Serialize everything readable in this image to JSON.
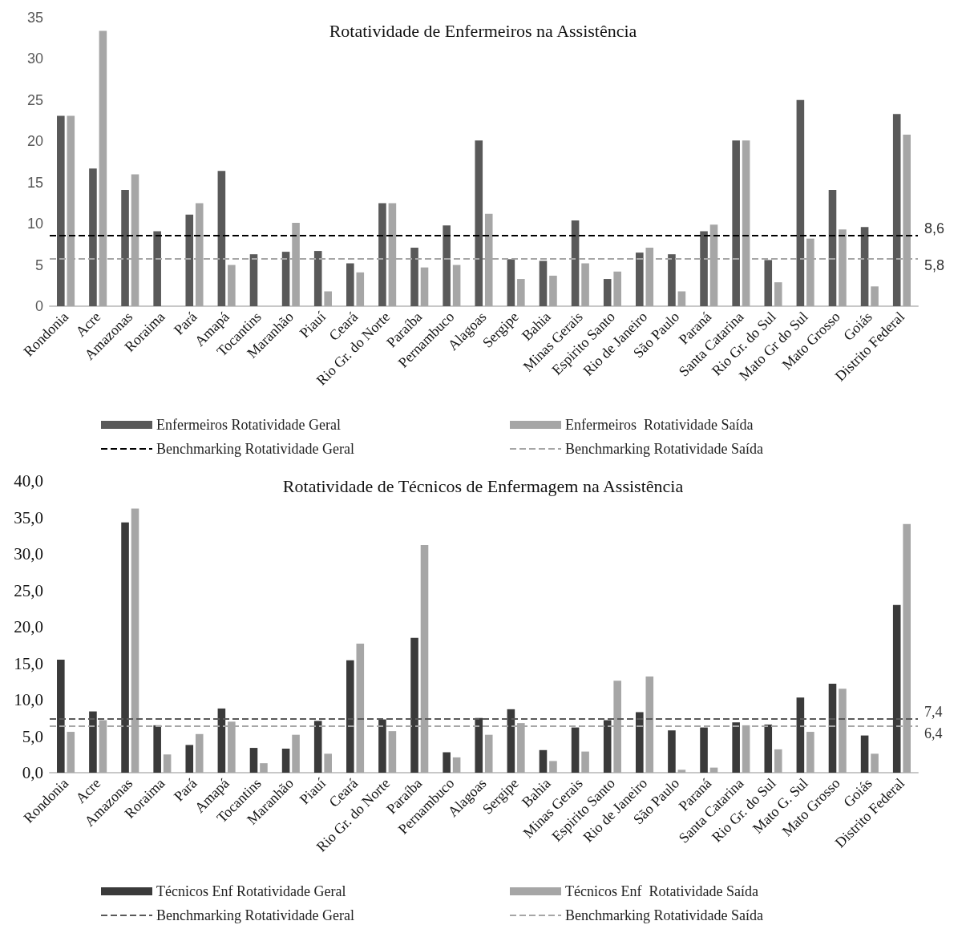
{
  "chart_data": [
    {
      "type": "bar",
      "title": "Rotatividade de Enfermeiros na Assistência",
      "categories": [
        "Rondonia",
        "Acre",
        "Amazonas",
        "Roraima",
        "Pará",
        "Amapá",
        "Tocantins",
        "Maranhão",
        "Piauí",
        "Ceará",
        "Rio Gr. do Norte",
        "Paraíba",
        "Pernambuco",
        "Alagoas",
        "Sergipe",
        "Bahia",
        "Minas Gerais",
        "Espirito Santo",
        "Rio de Janeiro",
        "São Paulo",
        "Paraná",
        "Santa Catarina",
        "Rio Gr. do Sul",
        "Mato Gr do Sul",
        "Mato Grosso",
        "Goiás",
        "Distrito Federal"
      ],
      "series": [
        {
          "name": "Enfermeiros Rotatividade Geral",
          "color": "#595959",
          "values": [
            23.1,
            16.7,
            14.1,
            9.1,
            11.1,
            16.4,
            6.3,
            6.6,
            6.7,
            5.2,
            12.5,
            7.1,
            9.8,
            20.1,
            5.7,
            5.5,
            10.4,
            3.3,
            6.5,
            6.3,
            9.1,
            20.1,
            5.6,
            25.0,
            14.1,
            9.6,
            23.3
          ]
        },
        {
          "name": "Enfermeiros  Rotatividade Saída",
          "color": "#a6a6a6",
          "values": [
            23.1,
            33.4,
            16.0,
            null,
            12.5,
            5.0,
            null,
            10.1,
            1.8,
            4.1,
            12.5,
            4.7,
            5.0,
            11.2,
            3.3,
            3.7,
            5.2,
            4.2,
            7.1,
            1.8,
            9.9,
            20.1,
            2.9,
            8.2,
            9.3,
            2.4,
            20.8
          ]
        }
      ],
      "ref_lines": [
        {
          "axis": "y",
          "value": 8.6,
          "label": "Benchmarking Rotatividade Geral",
          "color": "#000000",
          "line_style": "dashed"
        },
        {
          "axis": "y",
          "value": 5.8,
          "label": "Benchmarking Rotatividade Saída",
          "color": "#a6a6a6",
          "line_style": "dashed"
        }
      ],
      "annotations": [
        "8,6",
        "5,8"
      ],
      "ylim": [
        0,
        35
      ],
      "yticks": [
        0,
        5,
        10,
        15,
        20,
        25,
        30,
        35
      ],
      "grid": false,
      "legend": "bottom"
    },
    {
      "type": "bar",
      "title": "Rotatividade de Técnicos de Enfermagem na Assistência",
      "categories": [
        "Rondonia",
        "Acre",
        "Amazonas",
        "Roraima",
        "Pará",
        "Amapá",
        "Tocantins",
        "Maranhão",
        "Piauí",
        "Ceará",
        "Rio Gr. do Norte",
        "Paraíba",
        "Pernambuco",
        "Alagoas",
        "Sergipe",
        "Bahia",
        "Minas Gerais",
        "Espirito Santo",
        "Rio de Janeiro",
        "São Paulo",
        "Paraná",
        "Santa Catarina",
        "Rio Gr. do Sul",
        "Mato G. Sul",
        "Mato Grosso",
        "Goiás",
        "Distrito Federal"
      ],
      "series": [
        {
          "name": "Técnicos Enf Rotatividade Geral",
          "color": "#3a3a3a",
          "values": [
            15.5,
            8.4,
            34.3,
            6.5,
            3.8,
            8.8,
            3.4,
            3.3,
            7.1,
            15.4,
            7.3,
            18.5,
            2.8,
            7.5,
            8.7,
            3.1,
            6.2,
            7.2,
            8.3,
            5.8,
            6.2,
            6.9,
            6.6,
            10.3,
            12.2,
            5.1,
            23.0
          ]
        },
        {
          "name": "Técnicos Enf  Rotatividade Saída",
          "color": "#a6a6a6",
          "values": [
            5.6,
            7.2,
            36.2,
            2.5,
            5.3,
            7.0,
            1.3,
            5.2,
            2.6,
            17.7,
            5.7,
            31.2,
            2.1,
            5.2,
            6.8,
            1.6,
            2.9,
            12.6,
            13.2,
            0.4,
            0.7,
            6.5,
            3.2,
            5.6,
            11.5,
            2.6,
            34.1
          ]
        }
      ],
      "ref_lines": [
        {
          "axis": "y",
          "value": 7.4,
          "label": "Benchmarking Rotatividade Geral",
          "color": "#595959",
          "line_style": "dashed"
        },
        {
          "axis": "y",
          "value": 6.4,
          "label": "Benchmarking Rotatividade Saída",
          "color": "#a6a6a6",
          "line_style": "dashed"
        }
      ],
      "annotations": [
        "7,4",
        "6,4"
      ],
      "ylim": [
        0,
        40
      ],
      "yticks": [
        {
          "value": 0,
          "label": "0,0"
        },
        {
          "value": 5,
          "label": "5,0"
        },
        {
          "value": 10,
          "label": "10,0"
        },
        {
          "value": 15,
          "label": "15,0"
        },
        {
          "value": 20,
          "label": "20,0"
        },
        {
          "value": 25,
          "label": "25,0"
        },
        {
          "value": 30,
          "label": "30,0"
        },
        {
          "value": 35,
          "label": "35,0"
        },
        {
          "value": 40,
          "label": "40,0"
        }
      ],
      "grid": false,
      "legend": "bottom"
    }
  ]
}
